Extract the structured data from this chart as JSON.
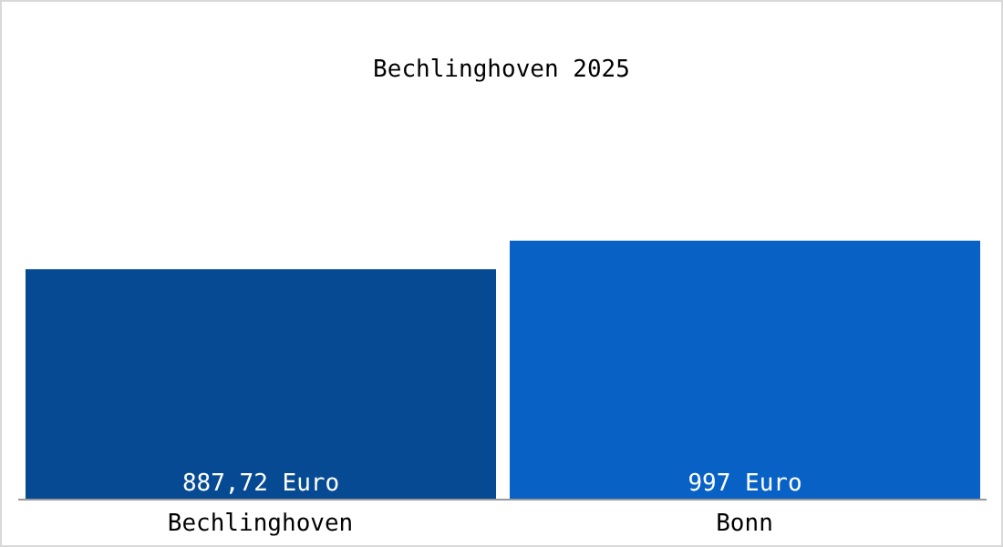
{
  "chart_data": {
    "type": "bar",
    "title": "Bechlinghoven 2025",
    "categories": [
      "Bechlinghoven",
      "Bonn"
    ],
    "values": [
      887.72,
      997
    ],
    "colors": [
      "#064a94",
      "#0862c6"
    ],
    "value_labels": [
      "887,72 Euro",
      "997 Euro"
    ],
    "grid": false,
    "legend": false
  }
}
